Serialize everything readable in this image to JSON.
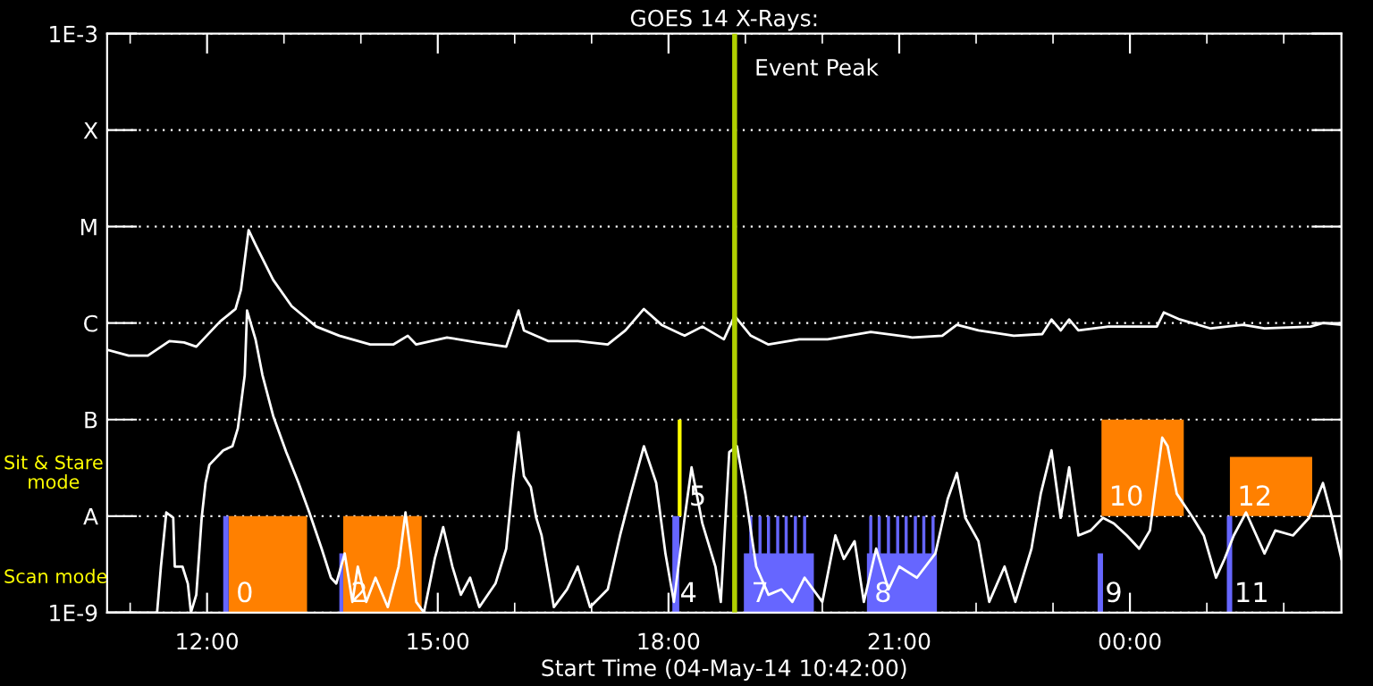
{
  "chart_data": {
    "type": "line",
    "title": "GOES 14 X-Rays:",
    "xlabel": "Start Time (04-May-14 10:42:00)",
    "log": "y",
    "grid": "y",
    "xlim": [
      10.7,
      26.75
    ],
    "ylim": [
      1e-09,
      0.001
    ],
    "xticks": [
      {
        "value": 11,
        "label": null
      },
      {
        "value": 12,
        "label": "12:00"
      },
      {
        "value": 13,
        "label": null
      },
      {
        "value": 14,
        "label": null
      },
      {
        "value": 15,
        "label": "15:00"
      },
      {
        "value": 16,
        "label": null
      },
      {
        "value": 17,
        "label": null
      },
      {
        "value": 18,
        "label": "18:00"
      },
      {
        "value": 19,
        "label": null
      },
      {
        "value": 20,
        "label": null
      },
      {
        "value": 21,
        "label": "21:00"
      },
      {
        "value": 22,
        "label": null
      },
      {
        "value": 23,
        "label": null
      },
      {
        "value": 24,
        "label": "00:00"
      },
      {
        "value": 25,
        "label": null
      },
      {
        "value": 26,
        "label": null
      }
    ],
    "yticks": [
      {
        "value": 1e-09,
        "label": "1E-9"
      },
      {
        "value": 1e-08,
        "label": "A"
      },
      {
        "value": 1e-07,
        "label": "B"
      },
      {
        "value": 1e-06,
        "label": "C"
      },
      {
        "value": 1e-05,
        "label": "M"
      },
      {
        "value": 0.0001,
        "label": "X"
      },
      {
        "value": 0.001,
        "label": "1E-3"
      }
    ],
    "series": [
      {
        "type": "area",
        "color": "#ff8000",
        "x": [
          12.28,
          13.3
        ],
        "values": [
          1e-08,
          1e-08
        ]
      },
      {
        "type": "area",
        "color": "#ff8000",
        "x": [
          13.77,
          14.79
        ],
        "values": [
          1e-08,
          1e-08
        ]
      },
      {
        "color": "#ff8000",
        "x": [
          23.63,
          24.7
        ],
        "values": [
          null,
          null
        ],
        "lower": [
          1e-08,
          1e-08
        ],
        "upper": [
          1e-07,
          1e-07
        ]
      },
      {
        "color": "#ff8000",
        "x": [
          25.3,
          26.37
        ],
        "values": [
          null,
          null
        ],
        "lower": [
          1e-08,
          1e-08
        ],
        "upper": [
          4.1e-08,
          4.1e-08
        ]
      },
      {
        "type": "area",
        "color": "#6666ff",
        "x": [
          12.21,
          12.28
        ],
        "values": [
          1e-08,
          1e-08
        ]
      },
      {
        "type": "area",
        "color": "#6666ff",
        "x": [
          13.72,
          13.77
        ],
        "values": [
          4.1e-09,
          4.1e-09
        ]
      },
      {
        "type": "area",
        "color": "#6666ff",
        "x": [
          18.05,
          18.14
        ],
        "values": [
          1e-08,
          1e-08
        ]
      },
      {
        "type": "area",
        "color": "#6666ff",
        "x": [
          18.98,
          19.05,
          19.05,
          19.09,
          19.09,
          19.17,
          19.17,
          19.21,
          19.21,
          19.28,
          19.28,
          19.32,
          19.32,
          19.4,
          19.4,
          19.44,
          19.44,
          19.51,
          19.51,
          19.55,
          19.55,
          19.63,
          19.63,
          19.67,
          19.67,
          19.75,
          19.75,
          19.79,
          19.79,
          19.89
        ],
        "values": [
          4.1e-09,
          4.1e-09,
          1e-08,
          1e-08,
          4.1e-09,
          4.1e-09,
          1e-08,
          1e-08,
          4.1e-09,
          4.1e-09,
          1e-08,
          1e-08,
          4.1e-09,
          4.1e-09,
          1e-08,
          1e-08,
          4.1e-09,
          4.1e-09,
          1e-08,
          1e-08,
          4.1e-09,
          4.1e-09,
          1e-08,
          1e-08,
          4.1e-09,
          4.1e-09,
          1e-08,
          1e-08,
          4.1e-09,
          4.1e-09
        ]
      },
      {
        "type": "area",
        "color": "#6666ff",
        "x": [
          20.58,
          20.61,
          20.61,
          20.65,
          20.65,
          20.72,
          20.72,
          20.76,
          20.76,
          20.84,
          20.84,
          20.88,
          20.88,
          20.96,
          20.96,
          21.0,
          21.0,
          21.07,
          21.07,
          21.11,
          21.11,
          21.19,
          21.19,
          21.23,
          21.23,
          21.3,
          21.3,
          21.34,
          21.34,
          21.42,
          21.42,
          21.46,
          21.46,
          21.49
        ],
        "values": [
          4.1e-09,
          4.1e-09,
          1e-08,
          1e-08,
          4.1e-09,
          4.1e-09,
          1e-08,
          1e-08,
          4.1e-09,
          4.1e-09,
          1e-08,
          1e-08,
          4.1e-09,
          4.1e-09,
          1e-08,
          1e-08,
          4.1e-09,
          4.1e-09,
          1e-08,
          1e-08,
          4.1e-09,
          4.1e-09,
          1e-08,
          1e-08,
          4.1e-09,
          4.1e-09,
          1e-08,
          1e-08,
          4.1e-09,
          4.1e-09,
          1e-08,
          1e-08,
          4.1e-09,
          4.1e-09
        ]
      },
      {
        "type": "area",
        "color": "#6666ff",
        "x": [
          23.58,
          23.65
        ],
        "values": [
          4.1e-09,
          4.1e-09
        ]
      },
      {
        "type": "area",
        "color": "#6666ff",
        "x": [
          25.26,
          25.33
        ],
        "values": [
          1e-08,
          1e-08
        ]
      },
      {
        "color": "#ffff00",
        "x": [
          18.12,
          18.17
        ],
        "values": [
          null,
          null
        ],
        "lower": [
          1e-08,
          1e-08
        ],
        "upper": [
          1e-07,
          1e-07
        ]
      },
      {
        "color": "#ffffff",
        "x": [
          10.7,
          10.98,
          11.23,
          11.51,
          11.7,
          11.86,
          12.17,
          12.37,
          12.44,
          12.54,
          12.63,
          12.86,
          13.1,
          13.42,
          13.72,
          14.12,
          14.42,
          14.61,
          14.72,
          15.12,
          15.51,
          15.89,
          16.05,
          16.12,
          16.44,
          16.82,
          17.21,
          17.44,
          17.68,
          17.91,
          18.21,
          18.44,
          18.72,
          18.86,
          19.07,
          19.3,
          19.7,
          20.07,
          20.63,
          21.17,
          21.56,
          21.75,
          22.03,
          22.49,
          22.86,
          22.98,
          23.1,
          23.21,
          23.33,
          23.72,
          24.35,
          24.44,
          24.65,
          25.05,
          25.47,
          25.75,
          26.35,
          26.51,
          26.75
        ],
        "values": [
          5.3e-07,
          4.6e-07,
          4.6e-07,
          6.5e-07,
          6.3e-07,
          5.7e-07,
          1.04e-06,
          1.4e-06,
          2.2e-06,
          9.2e-06,
          6.5e-06,
          2.8e-06,
          1.5e-06,
          9.2e-07,
          7.4e-07,
          6e-07,
          6e-07,
          7.4e-07,
          6e-07,
          7.1e-07,
          6.3e-07,
          5.7e-07,
          1.35e-06,
          8.4e-07,
          6.5e-07,
          6.5e-07,
          6e-07,
          8.4e-07,
          1.4e-06,
          9.6e-07,
          7.4e-07,
          9.2e-07,
          6.8e-07,
          1.19e-06,
          7.4e-07,
          6e-07,
          6.8e-07,
          6.8e-07,
          8.1e-07,
          7.1e-07,
          7.4e-07,
          9.6e-07,
          8.4e-07,
          7.4e-07,
          7.7e-07,
          1.09e-06,
          8.4e-07,
          1.09e-06,
          8.4e-07,
          9.2e-07,
          9.2e-07,
          1.29e-06,
          1.09e-06,
          8.8e-07,
          9.6e-07,
          8.8e-07,
          9.2e-07,
          1e-06,
          9.6e-07
        ]
      },
      {
        "color": "#ffffff",
        "x": [
          10.7,
          11.35,
          11.4,
          11.47,
          11.56,
          11.58,
          11.68,
          11.75,
          11.79,
          11.86,
          11.93,
          11.98,
          12.03,
          12.21,
          12.33,
          12.4,
          12.49,
          12.52,
          12.63,
          12.72,
          12.86,
          13.03,
          13.19,
          13.33,
          13.49,
          13.61,
          13.68,
          13.79,
          13.89,
          13.96,
          14.07,
          14.19,
          14.35,
          14.49,
          14.58,
          14.65,
          14.72,
          14.82,
          14.96,
          15.07,
          15.19,
          15.3,
          15.42,
          15.54,
          15.75,
          15.89,
          15.98,
          16.05,
          16.12,
          16.21,
          16.28,
          16.35,
          16.51,
          16.68,
          16.82,
          16.98,
          17.21,
          17.37,
          17.51,
          17.68,
          17.84,
          17.96,
          18.07,
          18.21,
          18.3,
          18.44,
          18.61,
          18.68,
          18.79,
          18.89,
          19.0,
          19.14,
          19.3,
          19.47,
          19.61,
          19.77,
          20.0,
          20.17,
          20.28,
          20.42,
          20.54,
          20.7,
          20.86,
          21.0,
          21.23,
          21.47,
          21.63,
          21.75,
          21.86,
          22.03,
          22.17,
          22.37,
          22.51,
          22.72,
          22.84,
          22.98,
          23.1,
          23.21,
          23.33,
          23.49,
          23.65,
          23.79,
          23.96,
          24.12,
          24.26,
          24.42,
          24.49,
          24.61,
          24.82,
          24.96,
          25.12,
          25.23,
          25.35,
          25.51,
          25.75,
          25.89,
          26.12,
          26.33,
          26.51,
          26.63,
          26.75
        ],
        "values": [
          1e-09,
          1e-09,
          3e-09,
          1.09e-08,
          9.6e-09,
          3e-09,
          3e-09,
          2e-09,
          1e-09,
          1.53e-09,
          9.6e-09,
          2.2e-08,
          3.4e-08,
          4.8e-08,
          5.3e-08,
          8.1e-08,
          2.9e-07,
          1.35e-06,
          6.8e-07,
          2.9e-07,
          1.09e-07,
          4.6e-08,
          2.2e-08,
          1.09e-08,
          4.6e-09,
          2.3e-09,
          2e-09,
          4.1e-09,
          1.29e-09,
          3e-09,
          1.29e-09,
          2.3e-09,
          1.14e-09,
          3e-09,
          1.09e-08,
          4.1e-09,
          1.29e-09,
          1e-09,
          3.6e-09,
          7.7e-09,
          3e-09,
          1.53e-09,
          2.3e-09,
          1.14e-09,
          2e-09,
          4.6e-09,
          2.4e-08,
          7.4e-08,
          2.6e-08,
          2e-08,
          9.6e-09,
          6.3e-09,
          1.14e-09,
          1.74e-09,
          3e-09,
          1.14e-09,
          1.74e-09,
          6.3e-09,
          1.7e-08,
          5.3e-08,
          2.2e-08,
          4.1e-09,
          1.29e-09,
          9.6e-09,
          3.2e-08,
          8.4e-09,
          3e-09,
          1.29e-09,
          4.6e-08,
          5.3e-08,
          1.7e-08,
          3e-09,
          1.53e-09,
          1.74e-09,
          1.29e-09,
          2.3e-09,
          1.29e-09,
          6.3e-09,
          3.6e-09,
          5.5e-09,
          1.29e-09,
          4.6e-09,
          1.74e-09,
          3e-09,
          2.3e-09,
          4.1e-09,
          1.5e-08,
          2.8e-08,
          9.6e-09,
          5.5e-09,
          1.29e-09,
          3e-09,
          1.29e-09,
          4.6e-09,
          1.7e-08,
          4.8e-08,
          9.6e-09,
          3.2e-08,
          6.3e-09,
          7.1e-09,
          9.6e-09,
          8.4e-09,
          6.3e-09,
          4.6e-09,
          7.1e-09,
          6.5e-08,
          5.3e-08,
          1.7e-08,
          9.6e-09,
          6.3e-09,
          2.3e-09,
          3.6e-09,
          6.3e-09,
          1.09e-08,
          4.1e-09,
          7.1e-09,
          6.3e-09,
          9.6e-09,
          2.2e-08,
          9.6e-09,
          3.6e-09
        ]
      }
    ],
    "ref_lines": [
      {
        "axis": "x",
        "value": 18.86,
        "label": "Event Peak",
        "color": "#b0d000"
      }
    ],
    "annotations": [
      {
        "text": "0",
        "x": 12.28,
        "y": 1e-09
      },
      {
        "text": "2",
        "x": 13.77,
        "y": 1e-09
      },
      {
        "text": "4",
        "x": 18.05,
        "y": 1e-09
      },
      {
        "text": "5",
        "x": 18.17,
        "y": 1e-08
      },
      {
        "text": "7",
        "x": 18.98,
        "y": 1e-09
      },
      {
        "text": "8",
        "x": 20.58,
        "y": 1e-09
      },
      {
        "text": "9",
        "x": 23.58,
        "y": 1e-09
      },
      {
        "text": "10",
        "x": 23.63,
        "y": 1e-08
      },
      {
        "text": "11",
        "x": 25.26,
        "y": 1e-09
      },
      {
        "text": "12",
        "x": 25.3,
        "y": 1e-08
      },
      "Scan mode",
      "Sit & Stare\nmode"
    ]
  }
}
